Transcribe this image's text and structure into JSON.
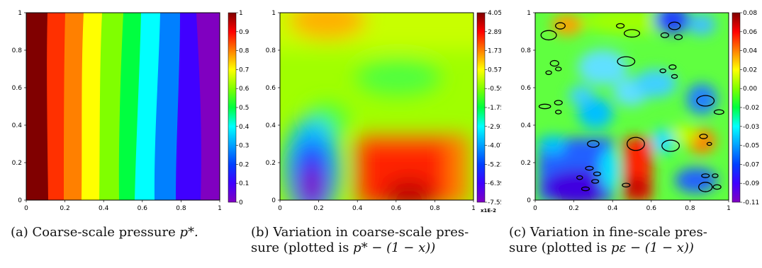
{
  "figure": {
    "panels": [
      {
        "id": "a",
        "caption_label": "(a)",
        "caption_text": "Coarse-scale pressure",
        "caption_math": "p*.",
        "x_ticks": [
          "0",
          "0.2",
          "0.4",
          "0.6",
          "0.8",
          "1"
        ],
        "y_ticks": [
          "0",
          "0.2",
          "0.4",
          "0.6",
          "0.8",
          "1"
        ],
        "colorbar_ticks": [
          "1",
          "0.9",
          "0.8",
          "0.7",
          "0.6",
          "0.5",
          "0.4",
          "0.3",
          "0.2",
          "0.1",
          "0"
        ],
        "colorbar_unit": ""
      },
      {
        "id": "b",
        "caption_label": "(b)",
        "caption_line1": "Variation in coarse-scale pres-",
        "caption_line2_text": "sure (plotted is",
        "caption_math": "p* − (1 − x))",
        "x_ticks": [
          "0",
          "0.2",
          "0.4",
          "0.6",
          "0.8",
          "1"
        ],
        "y_ticks": [
          "0",
          "0.2",
          "0.4",
          "0.6",
          "0.8",
          "1"
        ],
        "colorbar_ticks": [
          "4.05",
          "2.89",
          "1.73",
          "0.57",
          "-0.59",
          "-1.75",
          "-2.91",
          "-4.07",
          "-5.23",
          "-6.39",
          "-7.55"
        ],
        "colorbar_unit": "x1E-2"
      },
      {
        "id": "c",
        "caption_label": "(c)",
        "caption_line1": "Variation in fine-scale pres-",
        "caption_line2_text": "sure (plotted is",
        "caption_math": "pε − (1 − x))",
        "x_ticks": [
          "0",
          "0.2",
          "0.4",
          "0.6",
          "0.8",
          "1"
        ],
        "y_ticks": [
          "0",
          "0.2",
          "0.4",
          "0.6",
          "0.8",
          "1"
        ],
        "colorbar_ticks": [
          "0.08",
          "0.06",
          "0.04",
          "0.02",
          "0.00",
          "-0.02",
          "-0.03",
          "-0.05",
          "-0.07",
          "-0.09",
          "-0.11"
        ],
        "colorbar_unit": ""
      }
    ]
  },
  "chart_data": [
    {
      "type": "heatmap",
      "title": "",
      "xlabel": "",
      "ylabel": "",
      "xlim": [
        0,
        1
      ],
      "ylim": [
        0,
        1
      ],
      "colorbar_range": [
        0,
        1
      ],
      "bands_x_at_y0": [
        0.07,
        0.13,
        0.24,
        0.35,
        0.46,
        0.54,
        0.65,
        0.77,
        0.88,
        1.0
      ],
      "description_levels": [
        1,
        0.9,
        0.8,
        0.7,
        0.6,
        0.5,
        0.4,
        0.3,
        0.2,
        0.1,
        0
      ]
    },
    {
      "type": "heatmap",
      "title": "",
      "colorbar_range": [
        -7.55,
        4.05
      ],
      "colorbar_unit": "x1E-2",
      "xlim": [
        0,
        1
      ],
      "ylim": [
        0,
        1
      ]
    },
    {
      "type": "heatmap",
      "title": "",
      "colorbar_range": [
        -0.11,
        0.08
      ],
      "xlim": [
        0,
        1
      ],
      "ylim": [
        0,
        1
      ],
      "inclusions_ellipses": [
        {
          "x": 0.07,
          "y": 0.88,
          "rx": 0.04,
          "ry": 0.025
        },
        {
          "x": 0.13,
          "y": 0.93,
          "rx": 0.025,
          "ry": 0.017
        },
        {
          "x": 0.5,
          "y": 0.89,
          "rx": 0.04,
          "ry": 0.02
        },
        {
          "x": 0.44,
          "y": 0.93,
          "rx": 0.02,
          "ry": 0.012
        },
        {
          "x": 0.72,
          "y": 0.93,
          "rx": 0.03,
          "ry": 0.02
        },
        {
          "x": 0.67,
          "y": 0.88,
          "rx": 0.02,
          "ry": 0.013
        },
        {
          "x": 0.74,
          "y": 0.87,
          "rx": 0.02,
          "ry": 0.013
        },
        {
          "x": 0.47,
          "y": 0.74,
          "rx": 0.045,
          "ry": 0.025
        },
        {
          "x": 0.1,
          "y": 0.73,
          "rx": 0.022,
          "ry": 0.015
        },
        {
          "x": 0.07,
          "y": 0.68,
          "rx": 0.015,
          "ry": 0.01
        },
        {
          "x": 0.12,
          "y": 0.7,
          "rx": 0.015,
          "ry": 0.01
        },
        {
          "x": 0.71,
          "y": 0.71,
          "rx": 0.018,
          "ry": 0.012
        },
        {
          "x": 0.66,
          "y": 0.69,
          "rx": 0.015,
          "ry": 0.01
        },
        {
          "x": 0.72,
          "y": 0.66,
          "rx": 0.015,
          "ry": 0.01
        },
        {
          "x": 0.88,
          "y": 0.53,
          "rx": 0.045,
          "ry": 0.028
        },
        {
          "x": 0.95,
          "y": 0.47,
          "rx": 0.025,
          "ry": 0.012
        },
        {
          "x": 0.12,
          "y": 0.52,
          "rx": 0.02,
          "ry": 0.012
        },
        {
          "x": 0.05,
          "y": 0.5,
          "rx": 0.03,
          "ry": 0.012
        },
        {
          "x": 0.12,
          "y": 0.47,
          "rx": 0.015,
          "ry": 0.01
        },
        {
          "x": 0.52,
          "y": 0.3,
          "rx": 0.045,
          "ry": 0.035
        },
        {
          "x": 0.7,
          "y": 0.29,
          "rx": 0.045,
          "ry": 0.03
        },
        {
          "x": 0.87,
          "y": 0.34,
          "rx": 0.02,
          "ry": 0.012
        },
        {
          "x": 0.9,
          "y": 0.3,
          "rx": 0.012,
          "ry": 0.008
        },
        {
          "x": 0.3,
          "y": 0.3,
          "rx": 0.03,
          "ry": 0.018
        },
        {
          "x": 0.28,
          "y": 0.17,
          "rx": 0.02,
          "ry": 0.01
        },
        {
          "x": 0.32,
          "y": 0.14,
          "rx": 0.018,
          "ry": 0.01
        },
        {
          "x": 0.23,
          "y": 0.12,
          "rx": 0.015,
          "ry": 0.01
        },
        {
          "x": 0.31,
          "y": 0.1,
          "rx": 0.018,
          "ry": 0.01
        },
        {
          "x": 0.26,
          "y": 0.06,
          "rx": 0.02,
          "ry": 0.01
        },
        {
          "x": 0.47,
          "y": 0.08,
          "rx": 0.02,
          "ry": 0.01
        },
        {
          "x": 0.88,
          "y": 0.13,
          "rx": 0.02,
          "ry": 0.01
        },
        {
          "x": 0.93,
          "y": 0.13,
          "rx": 0.015,
          "ry": 0.01
        },
        {
          "x": 0.88,
          "y": 0.07,
          "rx": 0.035,
          "ry": 0.025
        },
        {
          "x": 0.94,
          "y": 0.07,
          "rx": 0.02,
          "ry": 0.012
        }
      ]
    }
  ]
}
